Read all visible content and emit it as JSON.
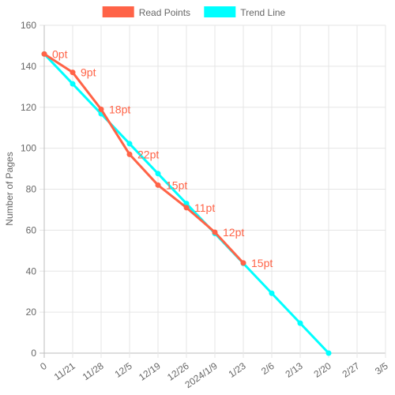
{
  "chart_data": {
    "type": "line",
    "ylabel": "Number of Pages",
    "ylim": [
      0,
      160
    ],
    "y_ticks": [
      "0",
      "20",
      "40",
      "60",
      "80",
      "100",
      "120",
      "140",
      "160"
    ],
    "x_ticks": [
      "0",
      "11/21",
      "11/28",
      "12/5",
      "12/19",
      "12/26",
      "2024/1/9",
      "1/23",
      "2/6",
      "2/13",
      "2/20",
      "2/27",
      "3/5"
    ],
    "legend_position": "top",
    "grid": true,
    "series": [
      {
        "name": "Read Points",
        "color": "#ff6347",
        "x": [
          0,
          1,
          2,
          3,
          4,
          5,
          6,
          7
        ],
        "y": [
          146,
          137,
          119,
          97,
          82,
          71,
          59,
          44
        ],
        "labels": [
          "0pt",
          "9pt",
          "18pt",
          "22pt",
          "15pt",
          "11pt",
          "12pt",
          "15pt"
        ]
      },
      {
        "name": "Trend Line",
        "color": "#00ffff",
        "x": [
          0,
          1,
          2,
          3,
          4,
          5,
          6,
          7,
          8,
          9,
          10
        ],
        "y": [
          146,
          131.4,
          116.8,
          102.2,
          87.6,
          73,
          58.4,
          43.8,
          29.2,
          14.6,
          0
        ]
      }
    ]
  }
}
